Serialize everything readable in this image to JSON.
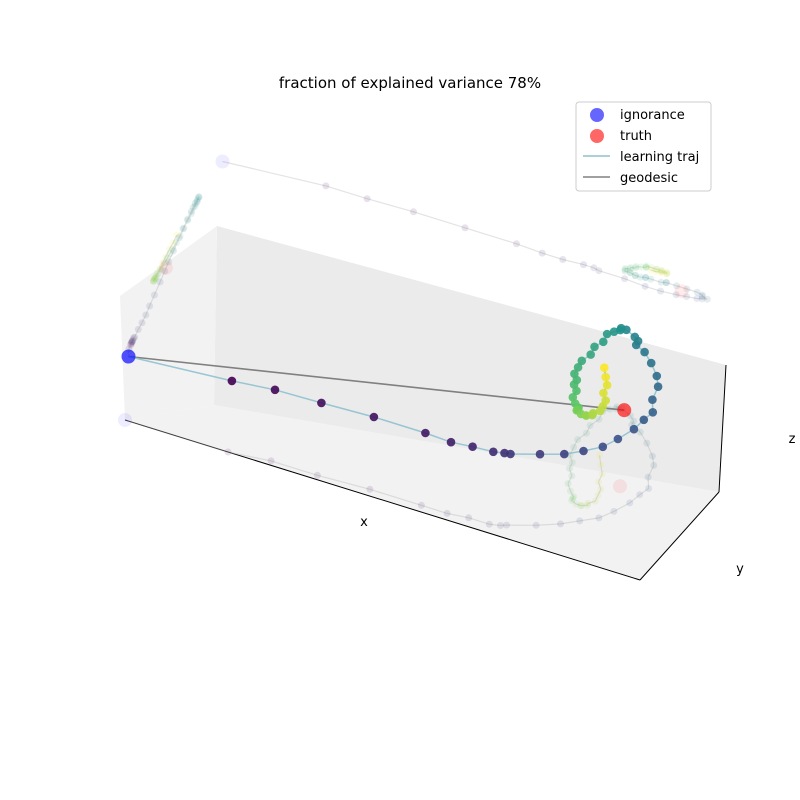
{
  "chart_data": {
    "type": "scatter",
    "projection": "3d",
    "title": "fraction of explained variance 78%",
    "xlabel": "x",
    "ylabel": "y",
    "zlabel": "z",
    "grid": false,
    "legend_position": "top-right",
    "legend": [
      {
        "label": "ignorance",
        "kind": "marker",
        "color": "#0000ff"
      },
      {
        "label": "truth",
        "kind": "marker",
        "color": "#ff0000"
      },
      {
        "label": "learning traj",
        "kind": "line",
        "color": "#8ec1cf"
      },
      {
        "label": "geodesic",
        "kind": "line",
        "color": "#808080"
      }
    ],
    "colormap": "viridis",
    "ignorance": {
      "x": 0.0,
      "y": 0.0,
      "z": 0.5
    },
    "truth": {
      "x": 0.89,
      "y": 0.39,
      "z": 0.6
    },
    "learning_traj": {
      "x": [
        0.2,
        0.28,
        0.37,
        0.47,
        0.57,
        0.62,
        0.66,
        0.7,
        0.72,
        0.73,
        0.78,
        0.82,
        0.85,
        0.88,
        0.9,
        0.92,
        0.93,
        0.94,
        0.93,
        0.93,
        0.92,
        0.9,
        0.88,
        0.86,
        0.86,
        0.85,
        0.83,
        0.82,
        0.82,
        0.81,
        0.8,
        0.8,
        0.79,
        0.79,
        0.78,
        0.78,
        0.78,
        0.79,
        0.79,
        0.8,
        0.8,
        0.81,
        0.82,
        0.82,
        0.82,
        0.83,
        0.84,
        0.84,
        0.85,
        0.85,
        0.86,
        0.86,
        0.86,
        0.85,
        0.85,
        0.84,
        0.83
      ],
      "y": [
        0.0,
        0.02,
        0.02,
        0.03,
        0.03,
        0.03,
        0.04,
        0.04,
        0.05,
        0.06,
        0.1,
        0.14,
        0.18,
        0.22,
        0.27,
        0.33,
        0.38,
        0.42,
        0.47,
        0.53,
        0.57,
        0.62,
        0.66,
        0.68,
        0.7,
        0.72,
        0.74,
        0.74,
        0.73,
        0.72,
        0.7,
        0.66,
        0.62,
        0.58,
        0.54,
        0.5,
        0.46,
        0.43,
        0.4,
        0.37,
        0.33,
        0.3,
        0.28,
        0.27,
        0.26,
        0.25,
        0.25,
        0.25,
        0.26,
        0.27,
        0.29,
        0.32,
        0.35,
        0.38,
        0.42,
        0.46,
        0.5
      ],
      "z": [
        0.56,
        0.56,
        0.57,
        0.57,
        0.57,
        0.56,
        0.56,
        0.57,
        0.57,
        0.56,
        0.56,
        0.55,
        0.55,
        0.56,
        0.57,
        0.58,
        0.59,
        0.6,
        0.61,
        0.62,
        0.63,
        0.63,
        0.63,
        0.63,
        0.63,
        0.62,
        0.62,
        0.62,
        0.62,
        0.61,
        0.61,
        0.61,
        0.62,
        0.62,
        0.62,
        0.63,
        0.64,
        0.65,
        0.66,
        0.67,
        0.68,
        0.69,
        0.7,
        0.7,
        0.71,
        0.71,
        0.71,
        0.71,
        0.71,
        0.71,
        0.71,
        0.7,
        0.7,
        0.7,
        0.7,
        0.69,
        0.69
      ]
    }
  }
}
